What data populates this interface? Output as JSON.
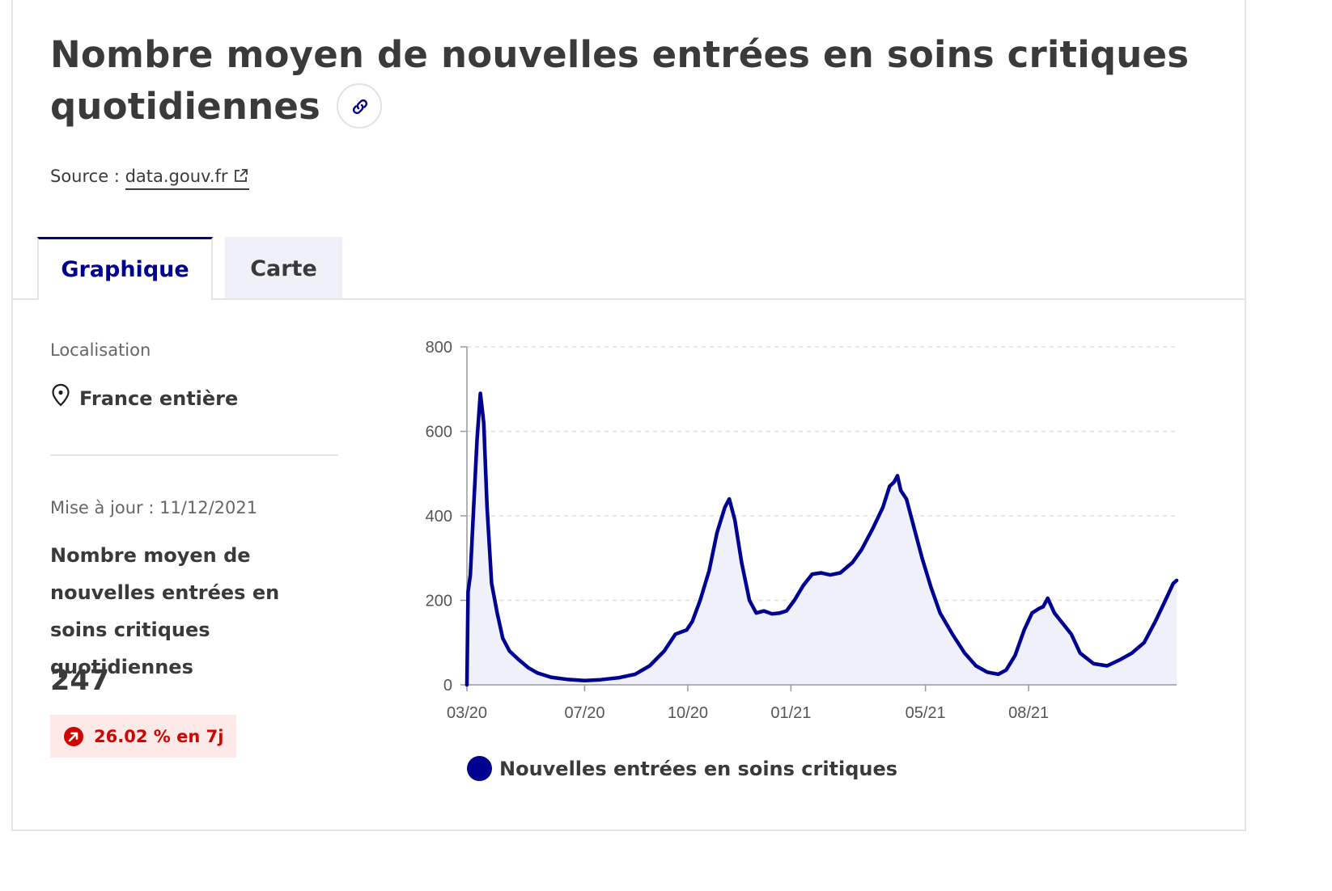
{
  "header": {
    "title": "Nombre moyen de nouvelles entrées en soins critiques quotidiennes",
    "source_prefix": "Source : ",
    "source_link": "data.gouv.fr"
  },
  "tabs": [
    {
      "label": "Graphique",
      "active": true
    },
    {
      "label": "Carte",
      "active": false
    }
  ],
  "sidebar": {
    "location_label": "Localisation",
    "location_value": "France entière",
    "update_text": "Mise à jour : 11/12/2021",
    "metric_name": "Nombre moyen de nouvelles entrées en soins critiques quotidiennes",
    "metric_value": "247",
    "trend_text": "26.02 % en 7j"
  },
  "colors": {
    "accent": "#000091",
    "trend_up_text": "#ce0500",
    "trend_up_bg": "#fee9e9",
    "area_fill": "#f0f0fa"
  },
  "chart_data": {
    "type": "area",
    "title": "",
    "xlabel": "",
    "ylabel": "",
    "ylim": [
      0,
      800
    ],
    "yticks": [
      0,
      200,
      400,
      600,
      800
    ],
    "xlim": [
      "2020-03-18",
      "2021-12-11"
    ],
    "xticks": [
      {
        "date": "2020-03-01",
        "label": "03/20"
      },
      {
        "date": "2020-07-01",
        "label": "07/20"
      },
      {
        "date": "2020-10-01",
        "label": "10/20"
      },
      {
        "date": "2021-01-01",
        "label": "01/21"
      },
      {
        "date": "2021-05-01",
        "label": "05/21"
      },
      {
        "date": "2021-08-01",
        "label": "08/21"
      }
    ],
    "grid": "horizontal dashed",
    "legend_position": "bottom",
    "series": [
      {
        "name": "Nouvelles entrées en soins critiques",
        "color": "#000091",
        "points": [
          [
            "2020-03-18",
            0
          ],
          [
            "2020-03-19",
            220
          ],
          [
            "2020-03-21",
            260
          ],
          [
            "2020-03-24",
            420
          ],
          [
            "2020-03-27",
            580
          ],
          [
            "2020-03-30",
            690
          ],
          [
            "2020-04-02",
            620
          ],
          [
            "2020-04-05",
            420
          ],
          [
            "2020-04-09",
            240
          ],
          [
            "2020-04-14",
            170
          ],
          [
            "2020-04-19",
            110
          ],
          [
            "2020-04-25",
            80
          ],
          [
            "2020-05-03",
            60
          ],
          [
            "2020-05-12",
            40
          ],
          [
            "2020-05-20",
            28
          ],
          [
            "2020-06-01",
            18
          ],
          [
            "2020-06-15",
            13
          ],
          [
            "2020-07-01",
            10
          ],
          [
            "2020-07-15",
            12
          ],
          [
            "2020-08-01",
            17
          ],
          [
            "2020-08-15",
            25
          ],
          [
            "2020-08-28",
            45
          ],
          [
            "2020-09-10",
            80
          ],
          [
            "2020-09-20",
            120
          ],
          [
            "2020-09-30",
            130
          ],
          [
            "2020-10-05",
            150
          ],
          [
            "2020-10-12",
            200
          ],
          [
            "2020-10-20",
            270
          ],
          [
            "2020-10-27",
            360
          ],
          [
            "2020-11-03",
            420
          ],
          [
            "2020-11-07",
            440
          ],
          [
            "2020-11-12",
            390
          ],
          [
            "2020-11-18",
            290
          ],
          [
            "2020-11-25",
            200
          ],
          [
            "2020-12-01",
            170
          ],
          [
            "2020-12-08",
            175
          ],
          [
            "2020-12-15",
            168
          ],
          [
            "2020-12-22",
            170
          ],
          [
            "2020-12-28",
            175
          ],
          [
            "2021-01-04",
            200
          ],
          [
            "2021-01-12",
            235
          ],
          [
            "2021-01-20",
            262
          ],
          [
            "2021-01-28",
            265
          ],
          [
            "2021-02-05",
            260
          ],
          [
            "2021-02-14",
            265
          ],
          [
            "2021-02-25",
            290
          ],
          [
            "2021-03-05",
            320
          ],
          [
            "2021-03-15",
            370
          ],
          [
            "2021-03-24",
            420
          ],
          [
            "2021-03-30",
            470
          ],
          [
            "2021-04-03",
            480
          ],
          [
            "2021-04-06",
            495
          ],
          [
            "2021-04-09",
            460
          ],
          [
            "2021-04-14",
            440
          ],
          [
            "2021-04-20",
            380
          ],
          [
            "2021-04-28",
            300
          ],
          [
            "2021-05-06",
            230
          ],
          [
            "2021-05-14",
            170
          ],
          [
            "2021-05-25",
            120
          ],
          [
            "2021-06-05",
            75
          ],
          [
            "2021-06-15",
            45
          ],
          [
            "2021-06-25",
            30
          ],
          [
            "2021-07-05",
            25
          ],
          [
            "2021-07-12",
            35
          ],
          [
            "2021-07-20",
            70
          ],
          [
            "2021-07-28",
            130
          ],
          [
            "2021-08-04",
            170
          ],
          [
            "2021-08-10",
            180
          ],
          [
            "2021-08-14",
            185
          ],
          [
            "2021-08-18",
            205
          ],
          [
            "2021-08-24",
            170
          ],
          [
            "2021-08-30",
            150
          ],
          [
            "2021-09-08",
            120
          ],
          [
            "2021-09-16",
            75
          ],
          [
            "2021-09-28",
            50
          ],
          [
            "2021-10-10",
            45
          ],
          [
            "2021-10-22",
            60
          ],
          [
            "2021-11-01",
            75
          ],
          [
            "2021-11-12",
            100
          ],
          [
            "2021-11-22",
            150
          ],
          [
            "2021-12-01",
            200
          ],
          [
            "2021-12-08",
            240
          ],
          [
            "2021-12-11",
            247
          ]
        ]
      }
    ]
  }
}
